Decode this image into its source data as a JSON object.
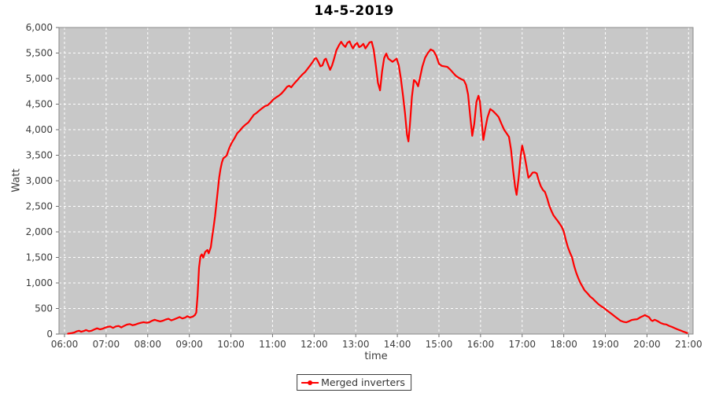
{
  "colors": {
    "page_bg": "#ffffff",
    "plot_bg": "#c8c8c8",
    "grid": "#ffffff",
    "plot_border": "#8a8a8a",
    "tick_mark": "#6e6e6e",
    "tick_text": "#3d3d3d",
    "title_text": "#000000",
    "line": "#ff0000",
    "legend_border": "#3c3c3c"
  },
  "chart_data": {
    "type": "line",
    "title": "14-5-2019",
    "xlabel": "time",
    "ylabel": "Watt",
    "grid": true,
    "legend_position": "bottom-center",
    "ylim": [
      0,
      6000
    ],
    "y_tick_step": 500,
    "y_tick_labels": [
      "0",
      "500",
      "1,000",
      "1,500",
      "2,000",
      "2,500",
      "3,000",
      "3,500",
      "4,000",
      "4,500",
      "5,000",
      "5,500",
      "6,000"
    ],
    "xlim_hours": [
      6,
      21
    ],
    "x_tick_labels": [
      "06:00",
      "07:00",
      "08:00",
      "09:00",
      "10:00",
      "11:00",
      "12:00",
      "13:00",
      "14:00",
      "15:00",
      "16:00",
      "17:00",
      "18:00",
      "19:00",
      "20:00",
      "21:00"
    ],
    "series": [
      {
        "name": "Merged inverters",
        "color": "#ff0000",
        "points": [
          [
            "06:05",
            8
          ],
          [
            "06:10",
            18
          ],
          [
            "06:14",
            30
          ],
          [
            "06:18",
            55
          ],
          [
            "06:21",
            65
          ],
          [
            "06:24",
            45
          ],
          [
            "06:28",
            60
          ],
          [
            "06:31",
            78
          ],
          [
            "06:35",
            55
          ],
          [
            "06:39",
            65
          ],
          [
            "06:43",
            90
          ],
          [
            "06:47",
            112
          ],
          [
            "06:51",
            92
          ],
          [
            "06:55",
            105
          ],
          [
            "06:58",
            122
          ],
          [
            "07:02",
            140
          ],
          [
            "07:06",
            148
          ],
          [
            "07:10",
            120
          ],
          [
            "07:14",
            150
          ],
          [
            "07:18",
            158
          ],
          [
            "07:22",
            130
          ],
          [
            "07:26",
            160
          ],
          [
            "07:30",
            185
          ],
          [
            "07:34",
            196
          ],
          [
            "07:38",
            172
          ],
          [
            "07:42",
            185
          ],
          [
            "07:46",
            205
          ],
          [
            "07:50",
            220
          ],
          [
            "07:54",
            232
          ],
          [
            "07:58",
            222
          ],
          [
            "08:02",
            230
          ],
          [
            "08:06",
            258
          ],
          [
            "08:10",
            280
          ],
          [
            "08:14",
            262
          ],
          [
            "08:18",
            248
          ],
          [
            "08:22",
            262
          ],
          [
            "08:26",
            285
          ],
          [
            "08:30",
            298
          ],
          [
            "08:34",
            268
          ],
          [
            "08:38",
            288
          ],
          [
            "08:42",
            310
          ],
          [
            "08:46",
            332
          ],
          [
            "08:50",
            305
          ],
          [
            "08:54",
            322
          ],
          [
            "08:57",
            350
          ],
          [
            "09:01",
            325
          ],
          [
            "09:05",
            342
          ],
          [
            "09:08",
            370
          ],
          [
            "09:10",
            420
          ],
          [
            "09:12",
            760
          ],
          [
            "09:14",
            1300
          ],
          [
            "09:16",
            1520
          ],
          [
            "09:18",
            1560
          ],
          [
            "09:20",
            1495
          ],
          [
            "09:23",
            1610
          ],
          [
            "09:26",
            1645
          ],
          [
            "09:28",
            1580
          ],
          [
            "09:31",
            1700
          ],
          [
            "09:33",
            1900
          ],
          [
            "09:35",
            2090
          ],
          [
            "09:37",
            2300
          ],
          [
            "09:39",
            2540
          ],
          [
            "09:41",
            2800
          ],
          [
            "09:43",
            3060
          ],
          [
            "09:45",
            3230
          ],
          [
            "09:47",
            3360
          ],
          [
            "09:49",
            3440
          ],
          [
            "09:52",
            3470
          ],
          [
            "09:54",
            3500
          ],
          [
            "09:57",
            3620
          ],
          [
            "10:01",
            3740
          ],
          [
            "10:05",
            3830
          ],
          [
            "10:09",
            3930
          ],
          [
            "10:13",
            3985
          ],
          [
            "10:17",
            4050
          ],
          [
            "10:21",
            4100
          ],
          [
            "10:25",
            4140
          ],
          [
            "10:29",
            4215
          ],
          [
            "10:33",
            4290
          ],
          [
            "10:37",
            4330
          ],
          [
            "10:41",
            4375
          ],
          [
            "10:45",
            4420
          ],
          [
            "10:49",
            4460
          ],
          [
            "10:53",
            4480
          ],
          [
            "10:57",
            4530
          ],
          [
            "11:01",
            4590
          ],
          [
            "11:05",
            4630
          ],
          [
            "11:09",
            4665
          ],
          [
            "11:13",
            4710
          ],
          [
            "11:17",
            4770
          ],
          [
            "11:21",
            4840
          ],
          [
            "11:24",
            4860
          ],
          [
            "11:27",
            4830
          ],
          [
            "11:31",
            4900
          ],
          [
            "11:35",
            4960
          ],
          [
            "11:39",
            5020
          ],
          [
            "11:43",
            5080
          ],
          [
            "11:47",
            5130
          ],
          [
            "11:51",
            5200
          ],
          [
            "11:55",
            5270
          ],
          [
            "11:58",
            5330
          ],
          [
            "12:01",
            5390
          ],
          [
            "12:03",
            5400
          ],
          [
            "12:06",
            5330
          ],
          [
            "12:09",
            5240
          ],
          [
            "12:12",
            5260
          ],
          [
            "12:15",
            5370
          ],
          [
            "12:17",
            5390
          ],
          [
            "12:20",
            5280
          ],
          [
            "12:23",
            5170
          ],
          [
            "12:26",
            5260
          ],
          [
            "12:29",
            5400
          ],
          [
            "12:32",
            5550
          ],
          [
            "12:36",
            5660
          ],
          [
            "12:39",
            5720
          ],
          [
            "12:42",
            5660
          ],
          [
            "12:45",
            5620
          ],
          [
            "12:48",
            5700
          ],
          [
            "12:51",
            5730
          ],
          [
            "12:54",
            5640
          ],
          [
            "12:56",
            5590
          ],
          [
            "12:59",
            5660
          ],
          [
            "13:02",
            5700
          ],
          [
            "13:05",
            5615
          ],
          [
            "13:08",
            5640
          ],
          [
            "13:11",
            5680
          ],
          [
            "13:14",
            5590
          ],
          [
            "13:17",
            5650
          ],
          [
            "13:20",
            5710
          ],
          [
            "13:23",
            5720
          ],
          [
            "13:26",
            5560
          ],
          [
            "13:29",
            5250
          ],
          [
            "13:32",
            4920
          ],
          [
            "13:35",
            4770
          ],
          [
            "13:38",
            5140
          ],
          [
            "13:41",
            5400
          ],
          [
            "13:44",
            5490
          ],
          [
            "13:47",
            5390
          ],
          [
            "13:50",
            5360
          ],
          [
            "13:53",
            5330
          ],
          [
            "13:56",
            5360
          ],
          [
            "13:59",
            5390
          ],
          [
            "14:02",
            5260
          ],
          [
            "14:05",
            5010
          ],
          [
            "14:08",
            4690
          ],
          [
            "14:11",
            4330
          ],
          [
            "14:14",
            3900
          ],
          [
            "14:16",
            3770
          ],
          [
            "14:18",
            4080
          ],
          [
            "14:21",
            4640
          ],
          [
            "14:24",
            4975
          ],
          [
            "14:27",
            4930
          ],
          [
            "14:30",
            4850
          ],
          [
            "14:33",
            5040
          ],
          [
            "14:36",
            5230
          ],
          [
            "14:40",
            5410
          ],
          [
            "14:44",
            5500
          ],
          [
            "14:48",
            5570
          ],
          [
            "14:52",
            5545
          ],
          [
            "14:56",
            5450
          ],
          [
            "15:00",
            5290
          ],
          [
            "15:04",
            5250
          ],
          [
            "15:08",
            5240
          ],
          [
            "15:12",
            5230
          ],
          [
            "15:16",
            5180
          ],
          [
            "15:20",
            5120
          ],
          [
            "15:24",
            5060
          ],
          [
            "15:28",
            5020
          ],
          [
            "15:32",
            4990
          ],
          [
            "15:36",
            4965
          ],
          [
            "15:39",
            4880
          ],
          [
            "15:42",
            4690
          ],
          [
            "15:45",
            4280
          ],
          [
            "15:48",
            3880
          ],
          [
            "15:51",
            4120
          ],
          [
            "15:54",
            4540
          ],
          [
            "15:57",
            4665
          ],
          [
            "15:59",
            4560
          ],
          [
            "16:02",
            4120
          ],
          [
            "16:04",
            3800
          ],
          [
            "16:07",
            4030
          ],
          [
            "16:10",
            4240
          ],
          [
            "16:14",
            4405
          ],
          [
            "16:18",
            4365
          ],
          [
            "16:22",
            4310
          ],
          [
            "16:26",
            4250
          ],
          [
            "16:30",
            4120
          ],
          [
            "16:34",
            4000
          ],
          [
            "16:38",
            3920
          ],
          [
            "16:41",
            3860
          ],
          [
            "16:44",
            3600
          ],
          [
            "16:47",
            3200
          ],
          [
            "16:50",
            2870
          ],
          [
            "16:52",
            2725
          ],
          [
            "16:55",
            3060
          ],
          [
            "16:58",
            3500
          ],
          [
            "17:00",
            3690
          ],
          [
            "17:03",
            3520
          ],
          [
            "17:06",
            3300
          ],
          [
            "17:09",
            3060
          ],
          [
            "17:12",
            3100
          ],
          [
            "17:15",
            3160
          ],
          [
            "17:18",
            3165
          ],
          [
            "17:21",
            3145
          ],
          [
            "17:24",
            3000
          ],
          [
            "17:27",
            2890
          ],
          [
            "17:30",
            2820
          ],
          [
            "17:33",
            2780
          ],
          [
            "17:36",
            2660
          ],
          [
            "17:39",
            2520
          ],
          [
            "17:42",
            2415
          ],
          [
            "17:45",
            2330
          ],
          [
            "17:48",
            2270
          ],
          [
            "17:51",
            2220
          ],
          [
            "17:54",
            2160
          ],
          [
            "17:57",
            2100
          ],
          [
            "18:00",
            2010
          ],
          [
            "18:03",
            1840
          ],
          [
            "18:06",
            1700
          ],
          [
            "18:09",
            1590
          ],
          [
            "18:12",
            1500
          ],
          [
            "18:15",
            1330
          ],
          [
            "18:18",
            1200
          ],
          [
            "18:21",
            1090
          ],
          [
            "18:24",
            1000
          ],
          [
            "18:27",
            930
          ],
          [
            "18:30",
            855
          ],
          [
            "18:34",
            800
          ],
          [
            "18:38",
            735
          ],
          [
            "18:42",
            690
          ],
          [
            "18:46",
            635
          ],
          [
            "18:50",
            585
          ],
          [
            "18:54",
            545
          ],
          [
            "18:58",
            510
          ],
          [
            "19:02",
            465
          ],
          [
            "19:06",
            425
          ],
          [
            "19:10",
            385
          ],
          [
            "19:14",
            340
          ],
          [
            "19:18",
            300
          ],
          [
            "19:22",
            260
          ],
          [
            "19:26",
            240
          ],
          [
            "19:30",
            230
          ],
          [
            "19:34",
            250
          ],
          [
            "19:38",
            275
          ],
          [
            "19:42",
            285
          ],
          [
            "19:46",
            290
          ],
          [
            "19:50",
            325
          ],
          [
            "19:54",
            350
          ],
          [
            "19:57",
            370
          ],
          [
            "20:00",
            350
          ],
          [
            "20:03",
            330
          ],
          [
            "20:06",
            270
          ],
          [
            "20:08",
            255
          ],
          [
            "20:11",
            280
          ],
          [
            "20:14",
            262
          ],
          [
            "20:17",
            240
          ],
          [
            "20:20",
            215
          ],
          [
            "20:24",
            195
          ],
          [
            "20:28",
            188
          ],
          [
            "20:32",
            160
          ],
          [
            "20:36",
            140
          ],
          [
            "20:40",
            115
          ],
          [
            "20:44",
            92
          ],
          [
            "20:48",
            72
          ],
          [
            "20:52",
            50
          ],
          [
            "20:55",
            35
          ],
          [
            "20:58",
            20
          ]
        ]
      }
    ]
  }
}
